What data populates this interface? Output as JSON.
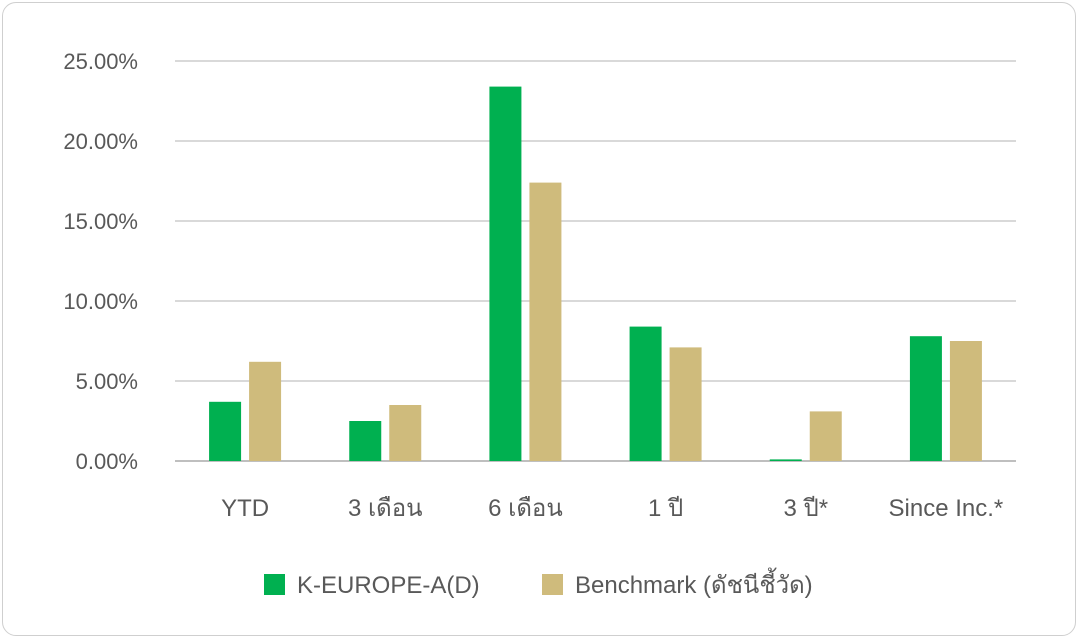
{
  "chart_data": {
    "type": "bar",
    "categories": [
      "YTD",
      "3 เดือน",
      "6 เดือน",
      "1 ปี",
      "3 ปี*",
      "Since Inc.*"
    ],
    "series": [
      {
        "name": "K-EUROPE-A(D)",
        "color": "#00b050",
        "values": [
          3.7,
          2.5,
          23.4,
          8.4,
          0.1,
          7.8
        ]
      },
      {
        "name": "Benchmark (ดัชนีชี้วัด)",
        "color": "#cfbb7c",
        "values": [
          6.2,
          3.5,
          17.4,
          7.1,
          3.1,
          7.5
        ]
      }
    ],
    "ylim": [
      0,
      25
    ],
    "yticks": [
      {
        "value": 0,
        "label": "0.00%"
      },
      {
        "value": 5,
        "label": "5.00%"
      },
      {
        "value": 10,
        "label": "10.00%"
      },
      {
        "value": 15,
        "label": "15.00%"
      },
      {
        "value": 20,
        "label": "20.00%"
      },
      {
        "value": 25,
        "label": "25.00%"
      }
    ],
    "title": "",
    "xlabel": "",
    "ylabel": "",
    "grid": true,
    "legend": "bottom-center"
  }
}
